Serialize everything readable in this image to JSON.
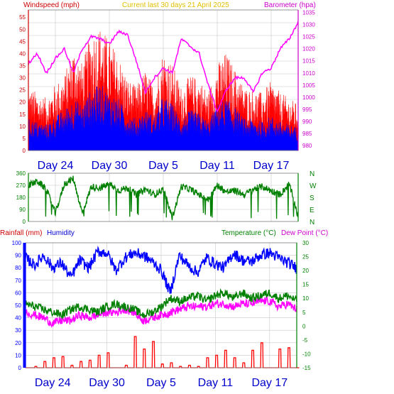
{
  "header": {
    "left_label": "Windspeed (mph)",
    "center_label": "Current last 30 days 21 April 2025",
    "right_label": "Barometer (hpa)"
  },
  "lower_header": {
    "rainfall_label": "Rainfall (mm)",
    "humidity_label": "Humidity",
    "temperature_label": "Temperature (°C)",
    "dewpoint_label": "Dew Point (°C)"
  },
  "colors": {
    "wind_gust": "#ff0000",
    "wind_avg": "#0000ff",
    "barometer": "#ff00ff",
    "direction": "#008000",
    "humidity": "#0000ff",
    "temperature": "#008000",
    "dewpoint": "#ff00ff",
    "rainfall": "#ff0000",
    "day_label": "#0000cc",
    "axis_red": "#cc0000",
    "axis_magenta": "#cc00cc",
    "axis_green": "#008000",
    "axis_blue": "#0000ff",
    "grid": "#c8c8c8"
  },
  "chart_data": [
    {
      "type": "line",
      "title": "Current last 30 days 21 April 2025",
      "xlabel": "",
      "x_tick_labels": [
        "Day 24",
        "Day 30",
        "Day 5",
        "Day 11",
        "Day 17"
      ],
      "x_ticks_day_index": [
        3,
        9,
        15,
        21,
        27
      ],
      "x_range_days": [
        0,
        30
      ],
      "y_left": {
        "label": "Windspeed (mph)",
        "ylim": [
          0,
          58
        ],
        "ticks": [
          0,
          5,
          10,
          15,
          20,
          25,
          30,
          35,
          40,
          45,
          50,
          55
        ]
      },
      "y_right": {
        "label": "Barometer (hpa)",
        "ylim": [
          978,
          1036
        ],
        "ticks": [
          980,
          985,
          990,
          995,
          1000,
          1005,
          1010,
          1015,
          1020,
          1025,
          1030,
          1035
        ]
      },
      "series": [
        {
          "name": "",
          "axis": "left",
          "role": "gust",
          "x": [
            0,
            1,
            2,
            3,
            4,
            5,
            6,
            7,
            8,
            9,
            10,
            11,
            12,
            13,
            14,
            15,
            16,
            17,
            18,
            19,
            20,
            21,
            22,
            23,
            24,
            25,
            26,
            27,
            28,
            29,
            30
          ],
          "values": [
            22,
            20,
            18,
            23,
            26,
            36,
            30,
            41,
            43,
            38,
            33,
            25,
            22,
            28,
            22,
            35,
            30,
            22,
            26,
            25,
            20,
            30,
            34,
            28,
            22,
            21,
            20,
            24,
            20,
            18,
            16
          ]
        },
        {
          "name": "",
          "axis": "left",
          "role": "average",
          "x": [
            0,
            1,
            2,
            3,
            4,
            5,
            6,
            7,
            8,
            9,
            10,
            11,
            12,
            13,
            14,
            15,
            16,
            17,
            18,
            19,
            20,
            21,
            22,
            23,
            24,
            25,
            26,
            27,
            28,
            29,
            30
          ],
          "values": [
            11,
            10,
            9,
            12,
            14,
            18,
            16,
            21,
            23,
            20,
            18,
            13,
            11,
            14,
            12,
            19,
            16,
            11,
            14,
            13,
            10,
            16,
            18,
            15,
            11,
            11,
            10,
            12,
            10,
            9,
            8
          ]
        },
        {
          "name": "",
          "axis": "right",
          "role": "barometer",
          "x": [
            0,
            1,
            2,
            3,
            4,
            5,
            6,
            7,
            8,
            9,
            10,
            11,
            12,
            13,
            14,
            15,
            16,
            17,
            18,
            19,
            20,
            21,
            22,
            23,
            24,
            25,
            26,
            27,
            28,
            29,
            30
          ],
          "values": [
            1014,
            1018,
            1010,
            1016,
            1020,
            1010,
            1020,
            1025,
            1024,
            1022,
            1027,
            1026,
            1015,
            1002,
            1008,
            1012,
            1010,
            1024,
            1021,
            1018,
            1005,
            994,
            1003,
            1008,
            1008,
            1002,
            1010,
            1012,
            1020,
            1024,
            1031
          ]
        }
      ]
    },
    {
      "type": "line",
      "title": "",
      "y_left": {
        "label": "",
        "ylim": [
          0,
          360
        ],
        "ticks": [
          0,
          90,
          180,
          270,
          360
        ]
      },
      "y_right_labels": [
        "N",
        "W",
        "S",
        "E",
        "N"
      ],
      "series": [
        {
          "name": "",
          "role": "wind_direction",
          "x": [
            0,
            1,
            2,
            3,
            4,
            5,
            6,
            7,
            8,
            9,
            10,
            11,
            12,
            13,
            14,
            15,
            16,
            17,
            18,
            19,
            20,
            21,
            22,
            23,
            24,
            25,
            26,
            27,
            28,
            29,
            30
          ],
          "values": [
            270,
            300,
            240,
            60,
            280,
            320,
            60,
            260,
            250,
            280,
            230,
            250,
            200,
            240,
            200,
            240,
            30,
            260,
            240,
            200,
            160,
            270,
            220,
            230,
            200,
            240,
            260,
            230,
            200,
            280,
            40
          ]
        }
      ]
    },
    {
      "type": "line",
      "title": "",
      "x_tick_labels": [
        "Day 24",
        "Day 30",
        "Day 5",
        "Day 11",
        "Day 17"
      ],
      "x_ticks_day_index": [
        3,
        9,
        15,
        21,
        27
      ],
      "y_left": {
        "label": "Rainfall (mm) / Humidity",
        "ylim": [
          0,
          100
        ],
        "ticks": [
          0,
          10,
          20,
          30,
          40,
          50,
          60,
          70,
          80,
          90,
          100
        ]
      },
      "y_right": {
        "label": "Temperature (°C) / Dew Point (°C)",
        "ylim": [
          -15,
          30
        ],
        "ticks": [
          -15,
          -10,
          -5,
          0,
          5,
          10,
          15,
          20,
          25,
          30
        ]
      },
      "series": [
        {
          "name": "Humidity",
          "axis": "left",
          "role": "humidity",
          "x": [
            0,
            1,
            2,
            3,
            4,
            5,
            6,
            7,
            8,
            9,
            10,
            11,
            12,
            13,
            14,
            15,
            16,
            17,
            18,
            19,
            20,
            21,
            22,
            23,
            24,
            25,
            26,
            27,
            28,
            29,
            30
          ],
          "values": [
            88,
            82,
            90,
            80,
            84,
            72,
            86,
            80,
            93,
            92,
            78,
            88,
            92,
            90,
            85,
            78,
            60,
            90,
            82,
            76,
            88,
            83,
            80,
            92,
            86,
            85,
            90,
            92,
            88,
            84,
            80
          ]
        },
        {
          "name": "Temperature (°C)",
          "axis": "right",
          "role": "temperature",
          "x": [
            0,
            1,
            2,
            3,
            4,
            5,
            6,
            7,
            8,
            9,
            10,
            11,
            12,
            13,
            14,
            15,
            16,
            17,
            18,
            19,
            20,
            21,
            22,
            23,
            24,
            25,
            26,
            27,
            28,
            29,
            30
          ],
          "values": [
            8,
            7,
            6,
            5,
            4,
            6,
            7,
            6,
            5,
            7,
            8,
            7,
            6,
            4,
            5,
            7,
            10,
            9,
            10,
            11,
            9,
            11,
            12,
            10,
            12,
            10,
            11,
            12,
            10,
            11,
            9
          ]
        },
        {
          "name": "Dew Point (°C)",
          "axis": "right",
          "role": "dewpoint",
          "x": [
            0,
            1,
            2,
            3,
            4,
            5,
            6,
            7,
            8,
            9,
            10,
            11,
            12,
            13,
            14,
            15,
            16,
            17,
            18,
            19,
            20,
            21,
            22,
            23,
            24,
            25,
            26,
            27,
            28,
            29,
            30
          ],
          "values": [
            5,
            4,
            3,
            1,
            2,
            2,
            4,
            3,
            4,
            5,
            5,
            6,
            5,
            2,
            3,
            4,
            5,
            6,
            7,
            7,
            7,
            8,
            8,
            7,
            8,
            8,
            9,
            9,
            7,
            8,
            6
          ]
        },
        {
          "name": "Rainfall (mm)",
          "axis": "left",
          "role": "rainfall",
          "x": [
            0,
            1,
            2,
            3,
            4,
            5,
            6,
            7,
            8,
            9,
            10,
            11,
            12,
            13,
            14,
            15,
            16,
            17,
            18,
            19,
            20,
            21,
            22,
            23,
            24,
            25,
            26,
            27,
            28,
            29,
            30
          ],
          "values": [
            0,
            1,
            5,
            8,
            9,
            2,
            5,
            6,
            10,
            12,
            0,
            2,
            25,
            15,
            21,
            3,
            4,
            1,
            2,
            1,
            8,
            10,
            14,
            8,
            4,
            14,
            20,
            0,
            15,
            16,
            0
          ]
        }
      ]
    }
  ]
}
